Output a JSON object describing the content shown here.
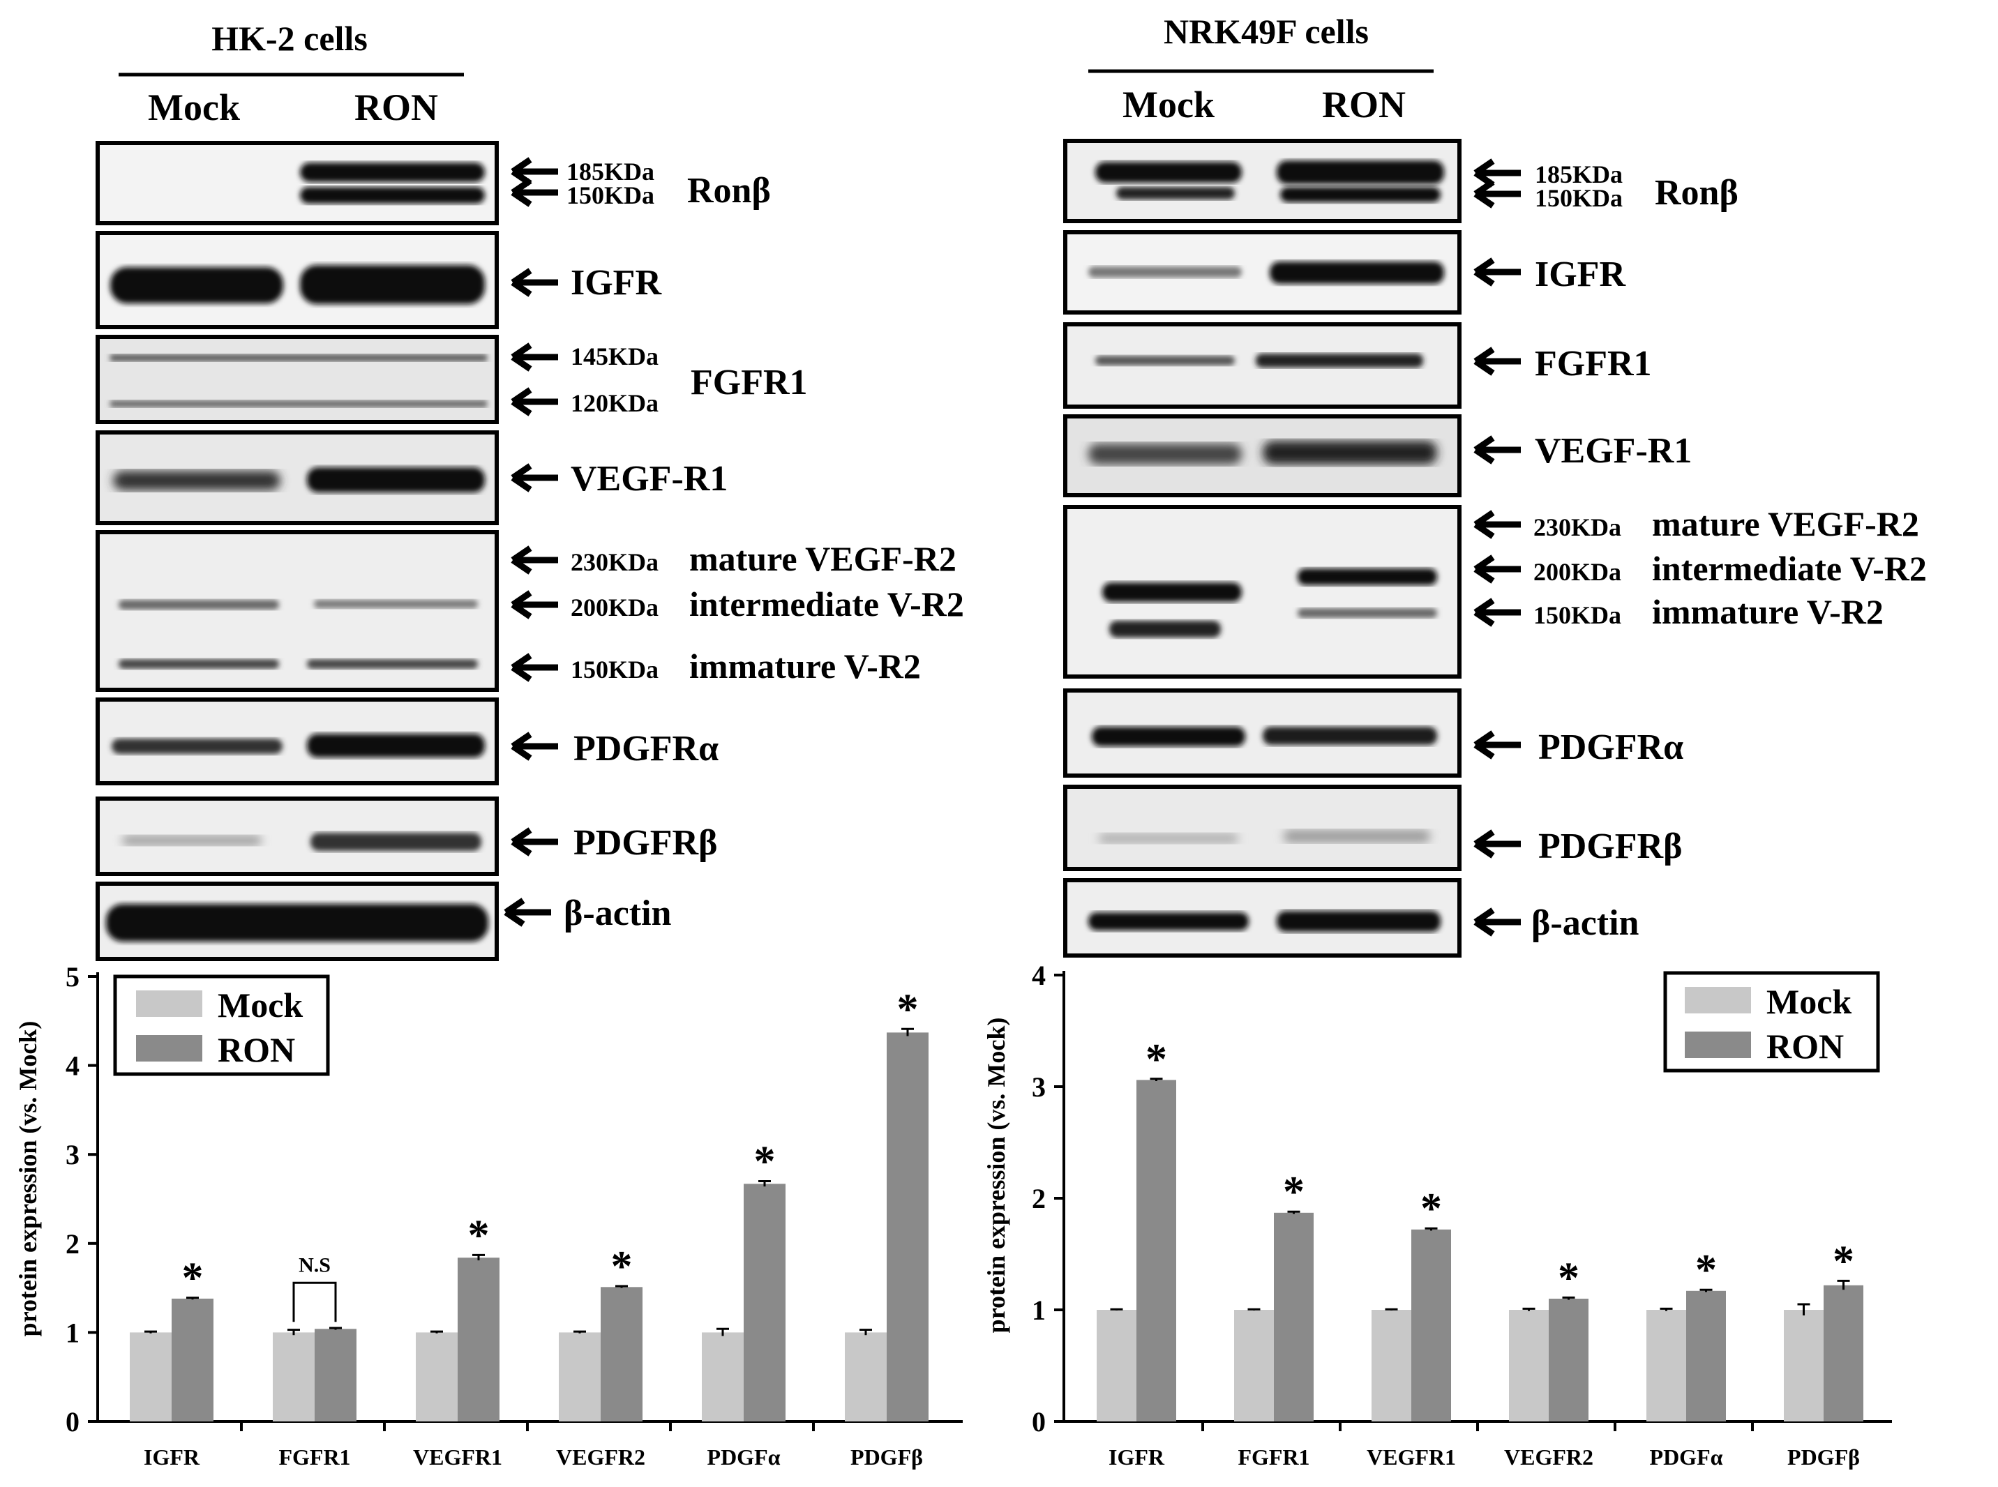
{
  "colors": {
    "mock": "#c8c8c8",
    "ron": "#8a8a8a",
    "axis": "#000000",
    "blot_bg": "#eeeeee",
    "band": "#111111"
  },
  "arrow_glyph": "←",
  "panels": [
    {
      "title": "HK-2 cells",
      "lanes": [
        "Mock",
        "RON"
      ],
      "blots": [
        {
          "labels": [
            "185KDa",
            "150KDa"
          ],
          "protein": "Ronβ"
        },
        {
          "labels": [],
          "protein": "IGFR"
        },
        {
          "labels": [
            "145KDa",
            "120KDa"
          ],
          "protein": "FGFR1"
        },
        {
          "labels": [],
          "protein": "VEGF-R1"
        },
        {
          "labels": [
            "230KDa",
            "200KDa",
            "150KDa"
          ],
          "protein_lines": [
            "mature VEGF-R2",
            "intermediate V-R2",
            "immature V-R2"
          ]
        },
        {
          "labels": [],
          "protein": "PDGFRα"
        },
        {
          "labels": [],
          "protein": "PDGFRβ"
        },
        {
          "labels": [],
          "protein": "β-actin"
        }
      ]
    },
    {
      "title": "NRK49F cells",
      "lanes": [
        "Mock",
        "RON"
      ],
      "blots": [
        {
          "labels": [
            "185KDa",
            "150KDa"
          ],
          "protein": "Ronβ"
        },
        {
          "labels": [],
          "protein": "IGFR"
        },
        {
          "labels": [],
          "protein": "FGFR1"
        },
        {
          "labels": [],
          "protein": "VEGF-R1"
        },
        {
          "labels": [
            "230KDa",
            "200KDa",
            "150KDa"
          ],
          "protein_lines": [
            "mature VEGF-R2",
            "intermediate V-R2",
            "immature V-R2"
          ]
        },
        {
          "labels": [],
          "protein": "PDGFRα"
        },
        {
          "labels": [],
          "protein": "PDGFRβ"
        },
        {
          "labels": [],
          "protein": "β-actin"
        }
      ]
    }
  ],
  "chart_data": [
    {
      "type": "bar",
      "ylabel": "protein expression (vs. Mock)",
      "ylim": [
        0,
        5
      ],
      "yticks": [
        0,
        1,
        2,
        3,
        4,
        5
      ],
      "categories": [
        "IGFR",
        "FGFR1",
        "VEGFR1",
        "VEGFR2",
        "PDGFα",
        "PDGFβ"
      ],
      "series": [
        {
          "name": "Mock",
          "values": [
            1.0,
            1.0,
            1.0,
            1.0,
            1.0,
            1.0
          ],
          "errors": [
            0.01,
            0.03,
            0.01,
            0.01,
            0.04,
            0.03
          ]
        },
        {
          "name": "RON",
          "values": [
            1.38,
            1.04,
            1.84,
            1.51,
            2.67,
            4.37
          ],
          "errors": [
            0.01,
            0.01,
            0.03,
            0.01,
            0.03,
            0.04
          ]
        }
      ],
      "annotations": [
        "*",
        "N.S",
        "*",
        "*",
        "*",
        "*"
      ],
      "legend_position": "top-left"
    },
    {
      "type": "bar",
      "ylabel": "protein expression (vs. Mock)",
      "ylim": [
        0,
        4
      ],
      "yticks": [
        0,
        1,
        2,
        3,
        4
      ],
      "categories": [
        "IGFR",
        "FGFR1",
        "VEGFR1",
        "VEGFR2",
        "PDGFα",
        "PDGFβ"
      ],
      "series": [
        {
          "name": "Mock",
          "values": [
            1.0,
            1.0,
            1.0,
            1.0,
            1.0,
            1.0
          ],
          "errors": [
            0.005,
            0.005,
            0.005,
            0.01,
            0.01,
            0.05
          ]
        },
        {
          "name": "RON",
          "values": [
            3.06,
            1.87,
            1.72,
            1.1,
            1.17,
            1.22
          ],
          "errors": [
            0.01,
            0.01,
            0.01,
            0.01,
            0.01,
            0.04
          ]
        }
      ],
      "annotations": [
        "*",
        "*",
        "*",
        "*",
        "*",
        "*"
      ],
      "legend_position": "top-right"
    }
  ]
}
